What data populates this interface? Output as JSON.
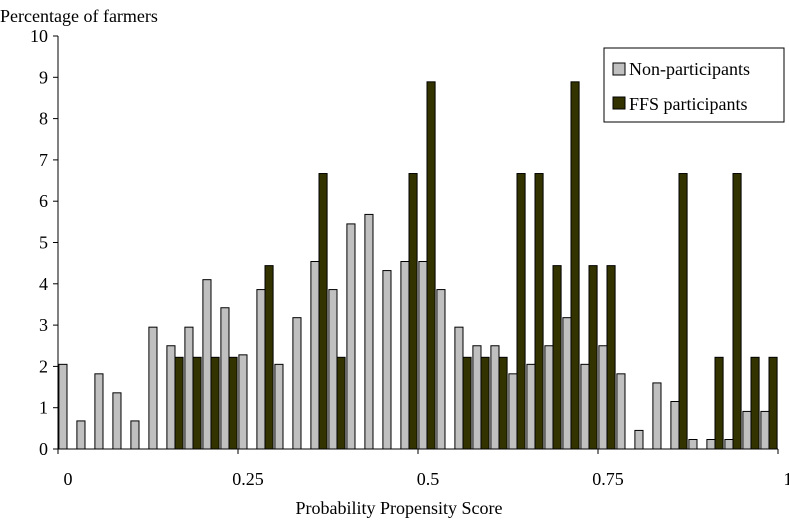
{
  "chart_data": {
    "type": "bar",
    "title": "",
    "ylabel": "Percentage of farmers",
    "xlabel": "Probability Propensity Score",
    "ylim": [
      0,
      10
    ],
    "xlim": [
      0,
      1
    ],
    "yticks": [
      0,
      1,
      2,
      3,
      4,
      5,
      6,
      7,
      8,
      9,
      10
    ],
    "xticks": [
      {
        "value": 0,
        "label": "0"
      },
      {
        "value": 0.25,
        "label": "0.25"
      },
      {
        "value": 0.5,
        "label": "0.5"
      },
      {
        "value": 0.75,
        "label": "0.75"
      },
      {
        "value": 1,
        "label": "1"
      }
    ],
    "grid": false,
    "legend": "top-right",
    "bins": 40,
    "series": [
      {
        "name": "Non-participants",
        "color": "#c0c0c0",
        "values": [
          2.05,
          0.68,
          1.82,
          1.36,
          0.68,
          2.95,
          2.5,
          2.95,
          4.1,
          3.42,
          2.28,
          3.86,
          2.05,
          3.18,
          4.54,
          3.86,
          5.45,
          5.68,
          4.32,
          4.54,
          4.54,
          3.86,
          2.95,
          2.5,
          2.5,
          1.82,
          2.05,
          2.5,
          3.18,
          2.05,
          2.5,
          1.82,
          0.45,
          1.6,
          1.15,
          0.23,
          0.23,
          0.23,
          0.91,
          0.91
        ]
      },
      {
        "name": "FFS participants",
        "color": "#333300",
        "values": [
          0,
          0,
          0,
          0,
          0,
          0,
          2.22,
          2.22,
          2.22,
          2.22,
          0,
          4.44,
          0,
          0,
          6.67,
          2.22,
          0,
          0,
          0,
          6.67,
          8.89,
          0,
          2.22,
          2.22,
          2.22,
          6.67,
          6.67,
          4.44,
          8.89,
          4.44,
          4.44,
          0,
          0,
          0,
          6.67,
          0,
          2.22,
          6.67,
          2.22,
          2.22
        ]
      }
    ]
  }
}
